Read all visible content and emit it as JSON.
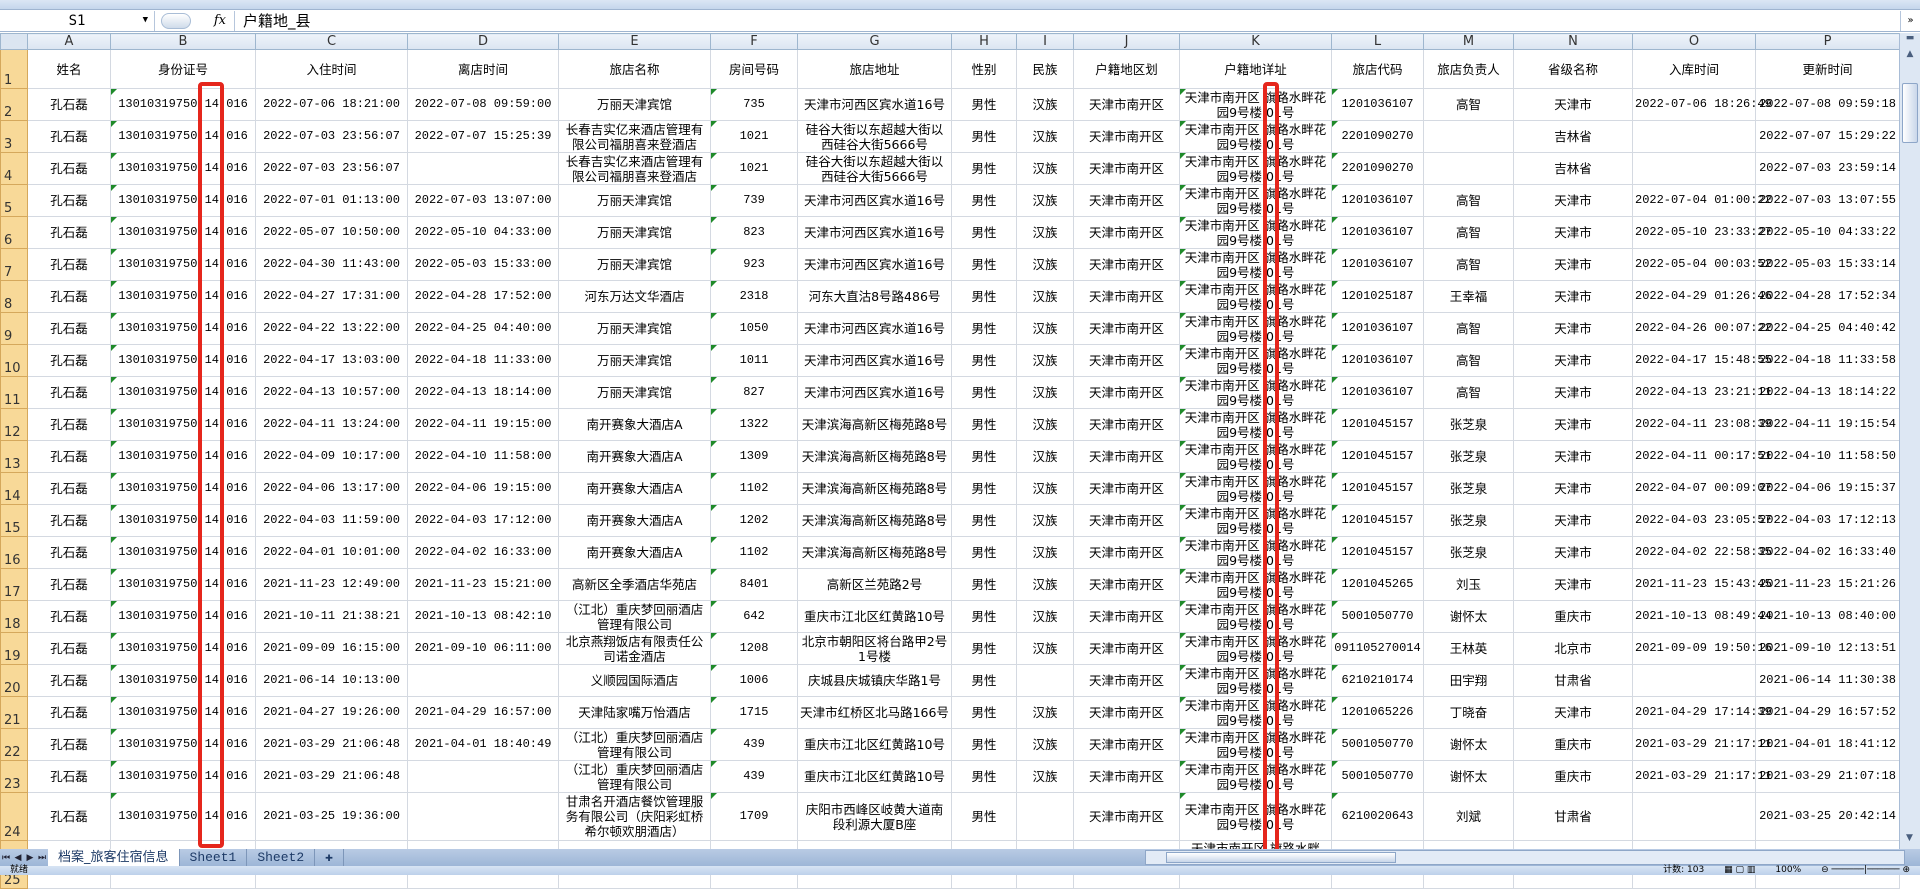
{
  "formula_bar": {
    "name_box": "S1",
    "fx_label": "fx",
    "formula": "户籍地_县"
  },
  "column_letters": [
    "A",
    "B",
    "C",
    "D",
    "E",
    "F",
    "G",
    "H",
    "I",
    "J",
    "K",
    "L",
    "M",
    "N",
    "O",
    "P"
  ],
  "headers": [
    "姓名",
    "身份证号",
    "入住时间",
    "离店时间",
    "旅店名称",
    "房间号码",
    "旅店地址",
    "性别",
    "民族",
    "户籍地区划",
    "户籍地详址",
    "旅店代码",
    "旅店负责人",
    "省级名称",
    "入库时间",
    "更新时间"
  ],
  "rows": [
    [
      "孔石磊",
      "13010319750 14 016",
      "2022-07-06 18:21:00",
      "2022-07-08 09:59:00",
      "万丽天津宾馆",
      "735",
      "天津市河西区宾水道16号",
      "男性",
      "汉族",
      "天津市南开区",
      "天津市南开区 旗路水畔花园9号楼 01号",
      "1201036107",
      "高智",
      "天津市",
      "2022-07-06 18:26:49",
      "2022-07-08 09:59:18"
    ],
    [
      "孔石磊",
      "13010319750 14 016",
      "2022-07-03 23:56:07",
      "2022-07-07 15:25:39",
      "长春吉实亿来酒店管理有限公司福朋喜来登酒店",
      "1021",
      "硅谷大街以东超越大街以西硅谷大街5666号",
      "男性",
      "汉族",
      "天津市南开区",
      "天津市南开区 旗路水畔花园9号楼 01号",
      "2201090270",
      "",
      "吉林省",
      "",
      "2022-07-07 15:29:22"
    ],
    [
      "孔石磊",
      "13010319750 14 016",
      "2022-07-03 23:56:07",
      "",
      "长春吉实亿来酒店管理有限公司福朋喜来登酒店",
      "1021",
      "硅谷大街以东超越大街以西硅谷大街5666号",
      "男性",
      "汉族",
      "天津市南开区",
      "天津市南开区 旗路水畔花园9号楼 01号",
      "2201090270",
      "",
      "吉林省",
      "",
      "2022-07-03 23:59:14"
    ],
    [
      "孔石磊",
      "13010319750 14 016",
      "2022-07-01 01:13:00",
      "2022-07-03 13:07:00",
      "万丽天津宾馆",
      "739",
      "天津市河西区宾水道16号",
      "男性",
      "汉族",
      "天津市南开区",
      "天津市南开区 旗路水畔花园9号楼 01号",
      "1201036107",
      "高智",
      "天津市",
      "2022-07-04 01:00:22",
      "2022-07-03 13:07:55"
    ],
    [
      "孔石磊",
      "13010319750 14 016",
      "2022-05-07 10:50:00",
      "2022-05-10 04:33:00",
      "万丽天津宾馆",
      "823",
      "天津市河西区宾水道16号",
      "男性",
      "汉族",
      "天津市南开区",
      "天津市南开区 旗路水畔花园9号楼 01号",
      "1201036107",
      "高智",
      "天津市",
      "2022-05-10 23:33:27",
      "2022-05-10 04:33:22"
    ],
    [
      "孔石磊",
      "13010319750 14 016",
      "2022-04-30 11:43:00",
      "2022-05-03 15:33:00",
      "万丽天津宾馆",
      "923",
      "天津市河西区宾水道16号",
      "男性",
      "汉族",
      "天津市南开区",
      "天津市南开区 旗路水畔花园9号楼 01号",
      "1201036107",
      "高智",
      "天津市",
      "2022-05-04 00:03:52",
      "2022-05-03 15:33:14"
    ],
    [
      "孔石磊",
      "13010319750 14 016",
      "2022-04-27 17:31:00",
      "2022-04-28 17:52:00",
      "河东万达文华酒店",
      "2318",
      "河东大直沽8号路486号",
      "男性",
      "汉族",
      "天津市南开区",
      "天津市南开区 旗路水畔花园9号楼 01号",
      "1201025187",
      "王幸福",
      "天津市",
      "2022-04-29 01:26:46",
      "2022-04-28 17:52:34"
    ],
    [
      "孔石磊",
      "13010319750 14 016",
      "2022-04-22 13:22:00",
      "2022-04-25 04:40:00",
      "万丽天津宾馆",
      "1050",
      "天津市河西区宾水道16号",
      "男性",
      "汉族",
      "天津市南开区",
      "天津市南开区 旗路水畔花园9号楼 01号",
      "1201036107",
      "高智",
      "天津市",
      "2022-04-26 00:07:22",
      "2022-04-25 04:40:42"
    ],
    [
      "孔石磊",
      "13010319750 14 016",
      "2022-04-17 13:03:00",
      "2022-04-18 11:33:00",
      "万丽天津宾馆",
      "1011",
      "天津市河西区宾水道16号",
      "男性",
      "汉族",
      "天津市南开区",
      "天津市南开区 旗路水畔花园9号楼 01号",
      "1201036107",
      "高智",
      "天津市",
      "2022-04-17 15:48:55",
      "2022-04-18 11:33:58"
    ],
    [
      "孔石磊",
      "13010319750 14 016",
      "2022-04-13 10:57:00",
      "2022-04-13 18:14:00",
      "万丽天津宾馆",
      "827",
      "天津市河西区宾水道16号",
      "男性",
      "汉族",
      "天津市南开区",
      "天津市南开区 旗路水畔花园9号楼 01号",
      "1201036107",
      "高智",
      "天津市",
      "2022-04-13 23:21:11",
      "2022-04-13 18:14:22"
    ],
    [
      "孔石磊",
      "13010319750 14 016",
      "2022-04-11 13:24:00",
      "2022-04-11 19:15:00",
      "南开赛象大酒店A",
      "1322",
      "天津滨海高新区梅苑路8号",
      "男性",
      "汉族",
      "天津市南开区",
      "天津市南开区 旗路水畔花园9号楼 01号",
      "1201045157",
      "张芝泉",
      "天津市",
      "2022-04-11 23:08:39",
      "2022-04-11 19:15:54"
    ],
    [
      "孔石磊",
      "13010319750 14 016",
      "2022-04-09 10:17:00",
      "2022-04-10 11:58:00",
      "南开赛象大酒店A",
      "1309",
      "天津滨海高新区梅苑路8号",
      "男性",
      "汉族",
      "天津市南开区",
      "天津市南开区 旗路水畔花园9号楼 01号",
      "1201045157",
      "张芝泉",
      "天津市",
      "2022-04-11 00:17:51",
      "2022-04-10 11:58:50"
    ],
    [
      "孔石磊",
      "13010319750 14 016",
      "2022-04-06 13:17:00",
      "2022-04-06 19:15:00",
      "南开赛象大酒店A",
      "1102",
      "天津滨海高新区梅苑路8号",
      "男性",
      "汉族",
      "天津市南开区",
      "天津市南开区 旗路水畔花园9号楼 01号",
      "1201045157",
      "张芝泉",
      "天津市",
      "2022-04-07 00:09:07",
      "2022-04-06 19:15:37"
    ],
    [
      "孔石磊",
      "13010319750 14 016",
      "2022-04-03 11:59:00",
      "2022-04-03 17:12:00",
      "南开赛象大酒店A",
      "1202",
      "天津滨海高新区梅苑路8号",
      "男性",
      "汉族",
      "天津市南开区",
      "天津市南开区 旗路水畔花园9号楼 01号",
      "1201045157",
      "张芝泉",
      "天津市",
      "2022-04-03 23:05:57",
      "2022-04-03 17:12:13"
    ],
    [
      "孔石磊",
      "13010319750 14 016",
      "2022-04-01 10:01:00",
      "2022-04-02 16:33:00",
      "南开赛象大酒店A",
      "1102",
      "天津滨海高新区梅苑路8号",
      "男性",
      "汉族",
      "天津市南开区",
      "天津市南开区 旗路水畔花园9号楼 01号",
      "1201045157",
      "张芝泉",
      "天津市",
      "2022-04-02 22:58:35",
      "2022-04-02 16:33:40"
    ],
    [
      "孔石磊",
      "13010319750 14 016",
      "2021-11-23 12:49:00",
      "2021-11-23 15:21:00",
      "高新区全季酒店华苑店",
      "8401",
      "高新区兰苑路2号",
      "男性",
      "汉族",
      "天津市南开区",
      "天津市南开区 旗路水畔花园9号楼 01号",
      "1201045265",
      "刘玉",
      "天津市",
      "2021-11-23 15:43:45",
      "2021-11-23 15:21:26"
    ],
    [
      "孔石磊",
      "13010319750 14 016",
      "2021-10-11 21:38:21",
      "2021-10-13 08:42:10",
      "（江北）重庆梦回丽酒店管理有限公司",
      "642",
      "重庆市江北区红黄路10号",
      "男性",
      "汉族",
      "天津市南开区",
      "天津市南开区 旗路水畔花园9号楼 01号",
      "5001050770",
      "谢怀太",
      "重庆市",
      "2021-10-13 08:49:44",
      "2021-10-13 08:40:00"
    ],
    [
      "孔石磊",
      "13010319750 14 016",
      "2021-09-09 16:15:00",
      "2021-09-10 06:11:00",
      "北京燕翔饭店有限责任公司诺金酒店",
      "1208",
      "北京市朝阳区将台路甲2号1号楼",
      "男性",
      "汉族",
      "天津市南开区",
      "天津市南开区 旗路水畔花园9号楼 01号",
      "091105270014",
      "王林英",
      "北京市",
      "2021-09-09 19:50:16",
      "2021-09-10 12:13:51"
    ],
    [
      "孔石磊",
      "13010319750 14 016",
      "2021-06-14 10:13:00",
      "",
      "义顺园国际酒店",
      "1006",
      "庆城县庆城镇庆华路1号",
      "男性",
      "",
      "天津市南开区",
      "天津市南开区 旗路水畔花园9号楼 01号",
      "6210210174",
      "田宇翔",
      "甘肃省",
      "",
      "2021-06-14 11:30:38"
    ],
    [
      "孔石磊",
      "13010319750 14 016",
      "2021-04-27 19:26:00",
      "2021-04-29 16:57:00",
      "天津陆家嘴万怡酒店",
      "1715",
      "天津市红桥区北马路166号",
      "男性",
      "汉族",
      "天津市南开区",
      "天津市南开区 旗路水畔花园9号楼 01号",
      "1201065226",
      "丁晓奋",
      "天津市",
      "2021-04-29 17:14:39",
      "2021-04-29 16:57:52"
    ],
    [
      "孔石磊",
      "13010319750 14 016",
      "2021-03-29 21:06:48",
      "2021-04-01 18:40:49",
      "（江北）重庆梦回丽酒店管理有限公司",
      "439",
      "重庆市江北区红黄路10号",
      "男性",
      "汉族",
      "天津市南开区",
      "天津市南开区 旗路水畔花园9号楼 01号",
      "5001050770",
      "谢怀太",
      "重庆市",
      "2021-03-29 21:17:11",
      "2021-04-01 18:41:12"
    ],
    [
      "孔石磊",
      "13010319750 14 016",
      "2021-03-29 21:06:48",
      "",
      "（江北）重庆梦回丽酒店管理有限公司",
      "439",
      "重庆市江北区红黄路10号",
      "男性",
      "汉族",
      "天津市南开区",
      "天津市南开区 旗路水畔花园9号楼 01号",
      "5001050770",
      "谢怀太",
      "重庆市",
      "2021-03-29 21:17:11",
      "2021-03-29 21:07:18"
    ],
    [
      "孔石磊",
      "13010319750 14 016",
      "2021-03-25 19:36:00",
      "",
      "甘肃名开酒店餐饮管理服务有限公司（庆阳彩虹桥希尔顿欢朋酒店）",
      "1709",
      "庆阳市西峰区岐黄大道南段利源大厦B座",
      "男性",
      "",
      "天津市南开区",
      "天津市南开区 旗路水畔花园9号楼 01号",
      "6210020643",
      "刘斌",
      "甘肃省",
      "",
      "2021-03-25 20:42:14"
    ],
    [
      "",
      "",
      "",
      "",
      "",
      "",
      "",
      "",
      "",
      "",
      "天津市南开区 旗路水畔",
      "",
      "",
      "",
      "",
      ""
    ]
  ],
  "sheet_tabs": [
    "档案_旅客住宿信息",
    "Sheet1",
    "Sheet2"
  ],
  "active_tab": "档案_旅客住宿信息",
  "status": {
    "ready": "就绪",
    "count": "计数: 103",
    "zoom": "100%"
  },
  "colors": {
    "highlight_box": "#e5261c",
    "text_number_marker": "#1f8a2a",
    "row_header_selected": "#f8d998"
  }
}
